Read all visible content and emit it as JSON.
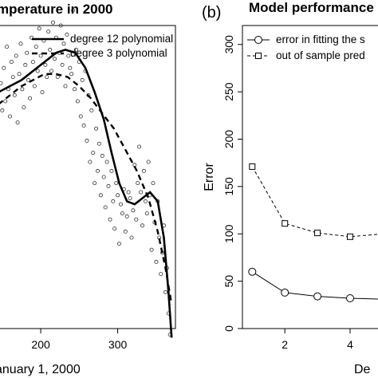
{
  "chart_data": [
    {
      "type": "scatter",
      "title": "mperature in 2000",
      "xlabel": "anuary 1, 2000",
      "ylabel": "",
      "xticks": [
        200,
        300
      ],
      "xlim": [
        145,
        375
      ],
      "ylim": [
        0,
        100
      ],
      "legend_position": "top-right",
      "series": [
        {
          "name": "degree 12 polynomial",
          "style": "solid",
          "x": [
            145,
            160,
            175,
            190,
            205,
            220,
            232,
            245,
            258,
            270,
            282,
            292,
            302,
            312,
            322,
            332,
            342,
            352,
            360,
            366,
            370
          ],
          "y": [
            78,
            80,
            82,
            85,
            88,
            91,
            92,
            91,
            86,
            78,
            69,
            58,
            48,
            42,
            41,
            43,
            45,
            42,
            30,
            12,
            -3
          ]
        },
        {
          "name": "degree 3 polynomial",
          "style": "dashed",
          "x": [
            145,
            160,
            175,
            190,
            205,
            220,
            235,
            250,
            265,
            280,
            295,
            310,
            325,
            340,
            352,
            362,
            370
          ],
          "y": [
            74,
            77,
            80,
            82,
            84,
            84,
            83,
            80,
            76,
            71,
            66,
            59,
            52,
            43,
            32,
            20,
            8
          ]
        },
        {
          "name": "",
          "style": "points",
          "x": [
            148,
            150,
            152,
            154,
            156,
            158,
            160,
            162,
            164,
            166,
            168,
            170,
            172,
            174,
            176,
            178,
            180,
            182,
            184,
            186,
            188,
            190,
            192,
            194,
            196,
            198,
            200,
            202,
            204,
            206,
            208,
            210,
            212,
            214,
            216,
            218,
            220,
            222,
            224,
            226,
            228,
            230,
            232,
            234,
            236,
            238,
            240,
            242,
            244,
            246,
            248,
            250,
            252,
            254,
            256,
            258,
            260,
            262,
            264,
            266,
            268,
            270,
            272,
            274,
            276,
            278,
            280,
            282,
            284,
            286,
            288,
            290,
            292,
            294,
            296,
            298,
            300,
            302,
            304,
            306,
            308,
            310,
            312,
            314,
            316,
            318,
            320,
            322,
            324,
            326,
            328,
            330,
            332,
            334,
            336,
            338,
            340,
            342,
            344,
            346,
            348,
            350,
            352,
            354,
            356,
            358,
            360,
            362,
            364,
            366,
            368
          ],
          "y": [
            81,
            72,
            86,
            75,
            93,
            79,
            70,
            88,
            83,
            77,
            90,
            68,
            84,
            94,
            79,
            73,
            87,
            91,
            82,
            76,
            96,
            88,
            80,
            93,
            85,
            99,
            90,
            78,
            95,
            87,
            83,
            98,
            92,
            85,
            101,
            89,
            96,
            83,
            91,
            100,
            87,
            94,
            80,
            97,
            90,
            86,
            84,
            105,
            79,
            92,
            75,
            88,
            70,
            82,
            67,
            85,
            62,
            77,
            55,
            72,
            58,
            48,
            66,
            52,
            61,
            44,
            57,
            50,
            40,
            55,
            47,
            36,
            52,
            42,
            33,
            48,
            44,
            28,
            41,
            38,
            46,
            32,
            37,
            45,
            43,
            30,
            39,
            54,
            36,
            48,
            60,
            45,
            34,
            52,
            42,
            38,
            55,
            44,
            26,
            48,
            35,
            22,
            42,
            30,
            18,
            25,
            34,
            12,
            20,
            5,
            -2
          ]
        }
      ]
    },
    {
      "type": "line",
      "title": "Model performance",
      "xlabel": "De",
      "ylabel": "Error",
      "xlim": [
        0.7,
        5.1
      ],
      "ylim": [
        0,
        320
      ],
      "xticks": [
        2,
        4
      ],
      "yticks": [
        0,
        50,
        100,
        150,
        200,
        250,
        300
      ],
      "legend_position": "top-right",
      "series": [
        {
          "name": "error in fitting the s",
          "style": "solid",
          "marker": "circle",
          "x": [
            1,
            2,
            3,
            4,
            5
          ],
          "y": [
            60,
            38,
            34,
            32,
            31
          ]
        },
        {
          "name": "out of sample pred",
          "style": "dashed",
          "marker": "square",
          "x": [
            1,
            2,
            3,
            4,
            5
          ],
          "y": [
            171,
            111,
            101,
            97,
            100
          ]
        }
      ]
    }
  ],
  "panel_b_letter": "(b)"
}
